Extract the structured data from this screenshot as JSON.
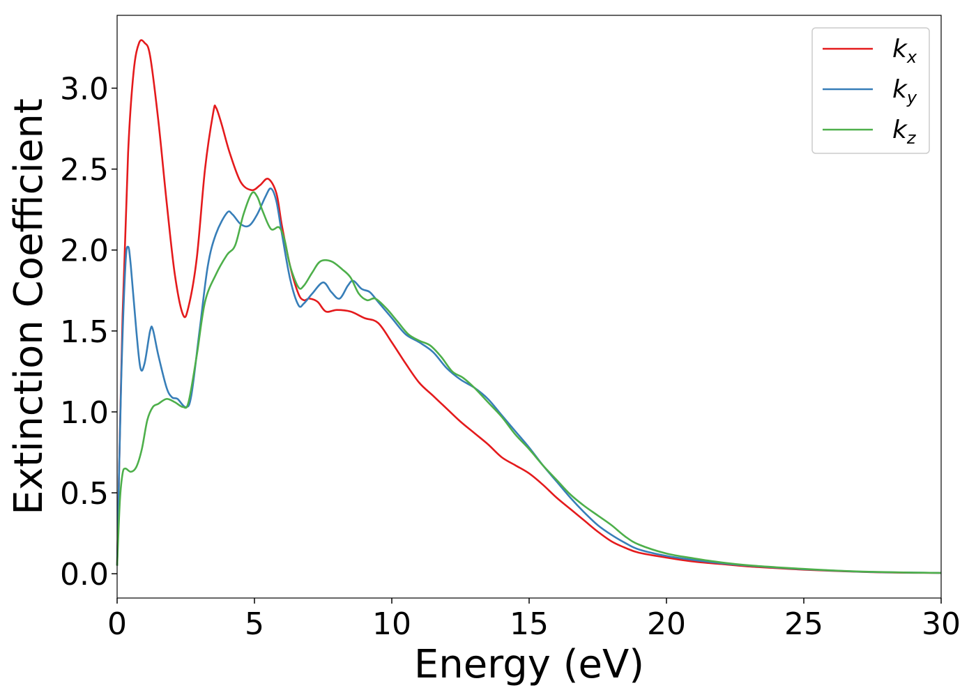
{
  "chart_data": {
    "type": "line",
    "title": "",
    "xlabel": "Energy (eV)",
    "ylabel": "Extinction Coefficient",
    "xlim": [
      0,
      30
    ],
    "ylim": [
      -0.15,
      3.45
    ],
    "xticks": [
      0,
      5,
      10,
      15,
      20,
      25,
      30
    ],
    "yticks": [
      0.0,
      0.5,
      1.0,
      1.5,
      2.0,
      2.5,
      3.0
    ],
    "xtick_labels": [
      "0",
      "5",
      "10",
      "15",
      "20",
      "25",
      "30"
    ],
    "ytick_labels": [
      "0.0",
      "0.5",
      "1.0",
      "1.5",
      "2.0",
      "2.5",
      "3.0"
    ],
    "grid": false,
    "legend_position": "top-right",
    "series": [
      {
        "name": "k",
        "subscript": "x",
        "color": "#e41a1c",
        "points": [
          [
            0,
            0.05
          ],
          [
            0.2,
            1.6
          ],
          [
            0.4,
            2.6
          ],
          [
            0.6,
            3.1
          ],
          [
            0.8,
            3.28
          ],
          [
            1.0,
            3.28
          ],
          [
            1.2,
            3.2
          ],
          [
            1.5,
            2.8
          ],
          [
            1.8,
            2.3
          ],
          [
            2.1,
            1.85
          ],
          [
            2.4,
            1.6
          ],
          [
            2.6,
            1.65
          ],
          [
            2.9,
            1.95
          ],
          [
            3.2,
            2.5
          ],
          [
            3.5,
            2.85
          ],
          [
            3.6,
            2.88
          ],
          [
            3.8,
            2.78
          ],
          [
            4.1,
            2.6
          ],
          [
            4.5,
            2.42
          ],
          [
            4.9,
            2.37
          ],
          [
            5.2,
            2.4
          ],
          [
            5.5,
            2.44
          ],
          [
            5.8,
            2.35
          ],
          [
            6.0,
            2.15
          ],
          [
            6.3,
            1.9
          ],
          [
            6.6,
            1.73
          ],
          [
            6.8,
            1.69
          ],
          [
            7.0,
            1.7
          ],
          [
            7.3,
            1.68
          ],
          [
            7.6,
            1.62
          ],
          [
            8.0,
            1.63
          ],
          [
            8.5,
            1.62
          ],
          [
            9.0,
            1.58
          ],
          [
            9.5,
            1.55
          ],
          [
            10.0,
            1.43
          ],
          [
            10.5,
            1.3
          ],
          [
            11.0,
            1.18
          ],
          [
            11.5,
            1.1
          ],
          [
            12.0,
            1.02
          ],
          [
            12.5,
            0.94
          ],
          [
            13.0,
            0.87
          ],
          [
            13.5,
            0.8
          ],
          [
            14.0,
            0.72
          ],
          [
            14.5,
            0.67
          ],
          [
            15.0,
            0.62
          ],
          [
            15.5,
            0.55
          ],
          [
            16.0,
            0.47
          ],
          [
            16.5,
            0.4
          ],
          [
            17.0,
            0.33
          ],
          [
            17.5,
            0.26
          ],
          [
            18.0,
            0.2
          ],
          [
            18.5,
            0.16
          ],
          [
            19.0,
            0.13
          ],
          [
            20.0,
            0.1
          ],
          [
            21.0,
            0.075
          ],
          [
            22.0,
            0.06
          ],
          [
            23.0,
            0.045
          ],
          [
            24.0,
            0.035
          ],
          [
            25.0,
            0.025
          ],
          [
            26.0,
            0.018
          ],
          [
            27.0,
            0.012
          ],
          [
            28.0,
            0.008
          ],
          [
            29.0,
            0.006
          ],
          [
            30.0,
            0.005
          ]
        ]
      },
      {
        "name": "k",
        "subscript": "y",
        "color": "#377eb8",
        "points": [
          [
            0,
            0.05
          ],
          [
            0.15,
            1.2
          ],
          [
            0.3,
            1.9
          ],
          [
            0.4,
            2.02
          ],
          [
            0.5,
            1.9
          ],
          [
            0.7,
            1.5
          ],
          [
            0.85,
            1.27
          ],
          [
            1.0,
            1.3
          ],
          [
            1.2,
            1.5
          ],
          [
            1.3,
            1.51
          ],
          [
            1.5,
            1.35
          ],
          [
            1.8,
            1.15
          ],
          [
            2.0,
            1.09
          ],
          [
            2.2,
            1.08
          ],
          [
            2.5,
            1.03
          ],
          [
            2.7,
            1.1
          ],
          [
            3.0,
            1.5
          ],
          [
            3.3,
            1.9
          ],
          [
            3.6,
            2.1
          ],
          [
            4.0,
            2.23
          ],
          [
            4.2,
            2.22
          ],
          [
            4.5,
            2.16
          ],
          [
            4.8,
            2.15
          ],
          [
            5.1,
            2.22
          ],
          [
            5.4,
            2.33
          ],
          [
            5.6,
            2.38
          ],
          [
            5.8,
            2.3
          ],
          [
            6.0,
            2.1
          ],
          [
            6.3,
            1.82
          ],
          [
            6.6,
            1.66
          ],
          [
            6.8,
            1.67
          ],
          [
            7.1,
            1.73
          ],
          [
            7.5,
            1.8
          ],
          [
            7.8,
            1.74
          ],
          [
            8.1,
            1.7
          ],
          [
            8.4,
            1.78
          ],
          [
            8.6,
            1.81
          ],
          [
            8.9,
            1.76
          ],
          [
            9.2,
            1.74
          ],
          [
            9.5,
            1.68
          ],
          [
            10.0,
            1.58
          ],
          [
            10.5,
            1.48
          ],
          [
            11.0,
            1.43
          ],
          [
            11.5,
            1.37
          ],
          [
            12.0,
            1.27
          ],
          [
            12.5,
            1.2
          ],
          [
            13.0,
            1.15
          ],
          [
            13.5,
            1.08
          ],
          [
            14.0,
            0.98
          ],
          [
            14.5,
            0.88
          ],
          [
            15.0,
            0.78
          ],
          [
            15.5,
            0.67
          ],
          [
            16.0,
            0.57
          ],
          [
            16.5,
            0.47
          ],
          [
            17.0,
            0.38
          ],
          [
            17.5,
            0.3
          ],
          [
            18.0,
            0.24
          ],
          [
            18.5,
            0.19
          ],
          [
            19.0,
            0.15
          ],
          [
            20.0,
            0.11
          ],
          [
            21.0,
            0.085
          ],
          [
            22.0,
            0.065
          ],
          [
            23.0,
            0.05
          ],
          [
            24.0,
            0.038
          ],
          [
            25.0,
            0.028
          ],
          [
            26.0,
            0.02
          ],
          [
            27.0,
            0.013
          ],
          [
            28.0,
            0.009
          ],
          [
            29.0,
            0.007
          ],
          [
            30.0,
            0.005
          ]
        ]
      },
      {
        "name": "k",
        "subscript": "z",
        "color": "#4daf4a",
        "points": [
          [
            0,
            0.05
          ],
          [
            0.1,
            0.45
          ],
          [
            0.2,
            0.62
          ],
          [
            0.3,
            0.65
          ],
          [
            0.5,
            0.63
          ],
          [
            0.7,
            0.66
          ],
          [
            0.9,
            0.77
          ],
          [
            1.1,
            0.95
          ],
          [
            1.3,
            1.03
          ],
          [
            1.5,
            1.05
          ],
          [
            1.8,
            1.08
          ],
          [
            2.1,
            1.06
          ],
          [
            2.4,
            1.03
          ],
          [
            2.6,
            1.06
          ],
          [
            2.9,
            1.35
          ],
          [
            3.2,
            1.68
          ],
          [
            3.6,
            1.85
          ],
          [
            4.0,
            1.97
          ],
          [
            4.3,
            2.03
          ],
          [
            4.6,
            2.22
          ],
          [
            4.9,
            2.35
          ],
          [
            5.1,
            2.33
          ],
          [
            5.3,
            2.24
          ],
          [
            5.6,
            2.13
          ],
          [
            5.9,
            2.14
          ],
          [
            6.1,
            2.06
          ],
          [
            6.3,
            1.9
          ],
          [
            6.6,
            1.77
          ],
          [
            6.8,
            1.78
          ],
          [
            7.1,
            1.86
          ],
          [
            7.4,
            1.93
          ],
          [
            7.8,
            1.93
          ],
          [
            8.2,
            1.88
          ],
          [
            8.5,
            1.83
          ],
          [
            8.8,
            1.73
          ],
          [
            9.1,
            1.69
          ],
          [
            9.4,
            1.7
          ],
          [
            9.8,
            1.64
          ],
          [
            10.2,
            1.56
          ],
          [
            10.6,
            1.48
          ],
          [
            11.0,
            1.44
          ],
          [
            11.4,
            1.41
          ],
          [
            11.8,
            1.34
          ],
          [
            12.2,
            1.25
          ],
          [
            12.6,
            1.21
          ],
          [
            13.0,
            1.15
          ],
          [
            13.5,
            1.06
          ],
          [
            14.0,
            0.97
          ],
          [
            14.5,
            0.86
          ],
          [
            15.0,
            0.77
          ],
          [
            15.5,
            0.67
          ],
          [
            16.0,
            0.58
          ],
          [
            16.5,
            0.49
          ],
          [
            17.0,
            0.42
          ],
          [
            17.5,
            0.36
          ],
          [
            18.0,
            0.3
          ],
          [
            18.5,
            0.23
          ],
          [
            19.0,
            0.18
          ],
          [
            20.0,
            0.125
          ],
          [
            21.0,
            0.095
          ],
          [
            22.0,
            0.07
          ],
          [
            23.0,
            0.052
          ],
          [
            24.0,
            0.04
          ],
          [
            25.0,
            0.03
          ],
          [
            26.0,
            0.021
          ],
          [
            27.0,
            0.014
          ],
          [
            28.0,
            0.01
          ],
          [
            29.0,
            0.007
          ],
          [
            30.0,
            0.005
          ]
        ]
      }
    ]
  }
}
